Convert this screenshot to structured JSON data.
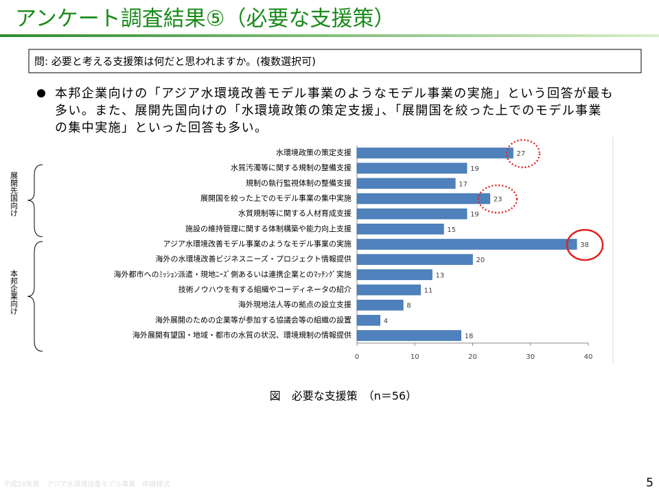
{
  "slide": {
    "title": "アンケート調査結果⑤（必要な支援策）",
    "question": "問: 必要と考える支援策は何だと思われますか。(複数選択可)",
    "bullet": [
      "本邦企業向けの「アジア水環境改善モデル事業のようなモデル事業の実施」という回答が最も",
      "多い。また、展開先国向けの「水環境政策の策定支援」、「展開国を絞った上でのモデル事業",
      "の集中実施」といった回答も多い。"
    ],
    "groups": [
      "展開先国向け",
      "本邦企業向け"
    ],
    "footer": "平成29年度　アジア水環境改善モデル事業　申請様式",
    "page_number": "5"
  },
  "chart_data": {
    "type": "hbar",
    "caption": "図　必要な支援策　（n＝56）",
    "categories": [
      "水環境政策の策定支援",
      "水質汚濁等に関する規制の整備支援",
      "規制の執行監視体制の整備支援",
      "展開国を絞った上でのモデル事業の集中実施",
      "水質規制等に関する人材育成支援",
      "施設の維持管理に関する体制構築や能力向上支援",
      "アジア水環境改善モデル事業のようなモデル事業の実施",
      "海外の水環境改善ビジネスニーズ・プロジェクト情報提供",
      "海外都市へのﾐｯｼｮﾝ派遣・現地ﾆｰｽﾞ側あるいは連携企業とのﾏｯﾁﾝｸﾞ実施",
      "技術ノウハウを有する組織やコーディネータの紹介",
      "海外現地法人等の拠点の設立支援",
      "海外展開のための企業等が参加する協議会等の組織の設置",
      "海外展開有望国・地域・都市の水質の状況、環境規制の情報提供"
    ],
    "values": [
      27,
      19,
      17,
      23,
      19,
      15,
      38,
      20,
      13,
      11,
      8,
      4,
      18
    ],
    "color": "#4f81bd",
    "xlim": [
      0,
      40
    ],
    "xticks": [
      0,
      10,
      20,
      30,
      40
    ]
  }
}
